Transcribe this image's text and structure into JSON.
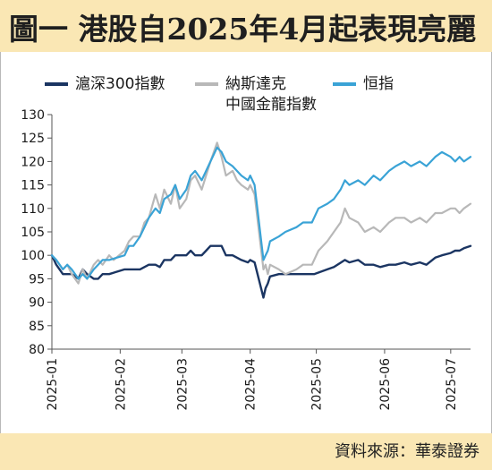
{
  "header": {
    "title": "圖一  港股自2025年4月起表現亮麗"
  },
  "footer": {
    "source": "資料來源：華泰證券"
  },
  "colors": {
    "background": "#ffffff",
    "title_bar": "#fae7b4",
    "hs300": "#1b3562",
    "nasdaq": "#b8b8b8",
    "hsi": "#3aa3d6"
  },
  "chart_data": {
    "type": "line",
    "title": "",
    "xlabel": "",
    "ylabel": "",
    "ylim": [
      80,
      130
    ],
    "yticks": [
      80,
      85,
      90,
      95,
      100,
      105,
      110,
      115,
      120,
      125,
      130
    ],
    "xlim": [
      "2025-01-01",
      "2025-07-10"
    ],
    "xticks": [
      "2025-01",
      "2025-02",
      "2025-03",
      "2025-04",
      "2025-05",
      "2025-06",
      "2025-07"
    ],
    "grid": false,
    "legend_position": "top",
    "legend": [
      {
        "label": "滬深300指數",
        "label_line2": "",
        "color": "#1b3562"
      },
      {
        "label": "納斯達克",
        "label_line2": "中國金龍指數",
        "color": "#b8b8b8"
      },
      {
        "label": "恒指",
        "label_line2": "",
        "color": "#3aa3d6"
      }
    ],
    "series": [
      {
        "name": "滬深300指數",
        "color": "#1b3562",
        "points": [
          [
            "2025-01-01",
            100
          ],
          [
            "2025-01-03",
            98
          ],
          [
            "2025-01-06",
            96
          ],
          [
            "2025-01-10",
            96
          ],
          [
            "2025-01-13",
            95
          ],
          [
            "2025-01-15",
            97
          ],
          [
            "2025-01-17",
            96
          ],
          [
            "2025-01-20",
            95
          ],
          [
            "2025-01-22",
            95
          ],
          [
            "2025-01-24",
            96
          ],
          [
            "2025-01-27",
            96
          ],
          [
            "2025-02-03",
            97
          ],
          [
            "2025-02-06",
            97
          ],
          [
            "2025-02-10",
            97
          ],
          [
            "2025-02-14",
            98
          ],
          [
            "2025-02-17",
            98
          ],
          [
            "2025-02-19",
            97.5
          ],
          [
            "2025-02-21",
            99
          ],
          [
            "2025-02-24",
            99
          ],
          [
            "2025-02-26",
            100
          ],
          [
            "2025-02-28",
            100
          ],
          [
            "2025-03-03",
            100
          ],
          [
            "2025-03-05",
            101
          ],
          [
            "2025-03-07",
            100
          ],
          [
            "2025-03-10",
            100
          ],
          [
            "2025-03-12",
            101
          ],
          [
            "2025-03-14",
            102
          ],
          [
            "2025-03-17",
            102
          ],
          [
            "2025-03-19",
            102
          ],
          [
            "2025-03-21",
            100
          ],
          [
            "2025-03-24",
            100
          ],
          [
            "2025-03-26",
            99.5
          ],
          [
            "2025-03-28",
            99
          ],
          [
            "2025-03-31",
            98.5
          ],
          [
            "2025-04-01",
            99
          ],
          [
            "2025-04-03",
            98.5
          ],
          [
            "2025-04-07",
            91
          ],
          [
            "2025-04-08",
            93
          ],
          [
            "2025-04-09",
            94
          ],
          [
            "2025-04-10",
            95.5
          ],
          [
            "2025-04-14",
            96
          ],
          [
            "2025-04-18",
            96
          ],
          [
            "2025-04-22",
            96
          ],
          [
            "2025-04-25",
            96
          ],
          [
            "2025-04-30",
            96
          ],
          [
            "2025-05-06",
            97
          ],
          [
            "2025-05-09",
            97.5
          ],
          [
            "2025-05-14",
            99
          ],
          [
            "2025-05-16",
            98.5
          ],
          [
            "2025-05-20",
            99
          ],
          [
            "2025-05-23",
            98
          ],
          [
            "2025-05-27",
            98
          ],
          [
            "2025-05-30",
            97.5
          ],
          [
            "2025-06-03",
            98
          ],
          [
            "2025-06-06",
            98
          ],
          [
            "2025-06-10",
            98.5
          ],
          [
            "2025-06-13",
            98
          ],
          [
            "2025-06-17",
            98.5
          ],
          [
            "2025-06-20",
            98
          ],
          [
            "2025-06-24",
            99.5
          ],
          [
            "2025-06-27",
            100
          ],
          [
            "2025-07-01",
            100.5
          ],
          [
            "2025-07-03",
            101
          ],
          [
            "2025-07-05",
            101
          ],
          [
            "2025-07-07",
            101.5
          ],
          [
            "2025-07-10",
            102
          ]
        ]
      },
      {
        "name": "納斯達克中國金龍指數",
        "color": "#b8b8b8",
        "points": [
          [
            "2025-01-01",
            100
          ],
          [
            "2025-01-03",
            99
          ],
          [
            "2025-01-06",
            97
          ],
          [
            "2025-01-08",
            98
          ],
          [
            "2025-01-10",
            96
          ],
          [
            "2025-01-13",
            94
          ],
          [
            "2025-01-15",
            97
          ],
          [
            "2025-01-17",
            95
          ],
          [
            "2025-01-20",
            98
          ],
          [
            "2025-01-22",
            99
          ],
          [
            "2025-01-24",
            98
          ],
          [
            "2025-01-27",
            100
          ],
          [
            "2025-01-29",
            99
          ],
          [
            "2025-02-03",
            101
          ],
          [
            "2025-02-05",
            103
          ],
          [
            "2025-02-07",
            104
          ],
          [
            "2025-02-10",
            104
          ],
          [
            "2025-02-12",
            107
          ],
          [
            "2025-02-14",
            108
          ],
          [
            "2025-02-17",
            113
          ],
          [
            "2025-02-19",
            110
          ],
          [
            "2025-02-21",
            114
          ],
          [
            "2025-02-24",
            111
          ],
          [
            "2025-02-26",
            115
          ],
          [
            "2025-02-28",
            110
          ],
          [
            "2025-03-03",
            112
          ],
          [
            "2025-03-05",
            116
          ],
          [
            "2025-03-07",
            117
          ],
          [
            "2025-03-10",
            114
          ],
          [
            "2025-03-12",
            117
          ],
          [
            "2025-03-14",
            120
          ],
          [
            "2025-03-17",
            124
          ],
          [
            "2025-03-19",
            121
          ],
          [
            "2025-03-21",
            117
          ],
          [
            "2025-03-24",
            118
          ],
          [
            "2025-03-26",
            116
          ],
          [
            "2025-03-28",
            115
          ],
          [
            "2025-03-31",
            114
          ],
          [
            "2025-04-01",
            115
          ],
          [
            "2025-04-03",
            113
          ],
          [
            "2025-04-07",
            97
          ],
          [
            "2025-04-08",
            98
          ],
          [
            "2025-04-09",
            96
          ],
          [
            "2025-04-10",
            98
          ],
          [
            "2025-04-14",
            97
          ],
          [
            "2025-04-17",
            96
          ],
          [
            "2025-04-22",
            97
          ],
          [
            "2025-04-25",
            98
          ],
          [
            "2025-04-29",
            98
          ],
          [
            "2025-05-02",
            101
          ],
          [
            "2025-05-06",
            103
          ],
          [
            "2025-05-09",
            105
          ],
          [
            "2025-05-12",
            107
          ],
          [
            "2025-05-14",
            110
          ],
          [
            "2025-05-16",
            108
          ],
          [
            "2025-05-20",
            107
          ],
          [
            "2025-05-23",
            105
          ],
          [
            "2025-05-27",
            106
          ],
          [
            "2025-05-30",
            105
          ],
          [
            "2025-06-03",
            107
          ],
          [
            "2025-06-06",
            108
          ],
          [
            "2025-06-10",
            108
          ],
          [
            "2025-06-13",
            107
          ],
          [
            "2025-06-17",
            108
          ],
          [
            "2025-06-20",
            107
          ],
          [
            "2025-06-24",
            109
          ],
          [
            "2025-06-27",
            109
          ],
          [
            "2025-07-01",
            110
          ],
          [
            "2025-07-03",
            110
          ],
          [
            "2025-07-05",
            109
          ],
          [
            "2025-07-07",
            110
          ],
          [
            "2025-07-10",
            111
          ]
        ]
      },
      {
        "name": "恒指",
        "color": "#3aa3d6",
        "points": [
          [
            "2025-01-01",
            100
          ],
          [
            "2025-01-03",
            99
          ],
          [
            "2025-01-06",
            97
          ],
          [
            "2025-01-08",
            98
          ],
          [
            "2025-01-10",
            97
          ],
          [
            "2025-01-13",
            95
          ],
          [
            "2025-01-15",
            96
          ],
          [
            "2025-01-17",
            95
          ],
          [
            "2025-01-20",
            97
          ],
          [
            "2025-01-22",
            98
          ],
          [
            "2025-01-24",
            99
          ],
          [
            "2025-01-27",
            99
          ],
          [
            "2025-02-03",
            100
          ],
          [
            "2025-02-05",
            102
          ],
          [
            "2025-02-07",
            102
          ],
          [
            "2025-02-10",
            104
          ],
          [
            "2025-02-12",
            106
          ],
          [
            "2025-02-14",
            108
          ],
          [
            "2025-02-17",
            110
          ],
          [
            "2025-02-19",
            109
          ],
          [
            "2025-02-21",
            112
          ],
          [
            "2025-02-24",
            113
          ],
          [
            "2025-02-26",
            115
          ],
          [
            "2025-02-28",
            112
          ],
          [
            "2025-03-03",
            114
          ],
          [
            "2025-03-05",
            117
          ],
          [
            "2025-03-07",
            118
          ],
          [
            "2025-03-10",
            116
          ],
          [
            "2025-03-12",
            118
          ],
          [
            "2025-03-14",
            120
          ],
          [
            "2025-03-17",
            123
          ],
          [
            "2025-03-19",
            122
          ],
          [
            "2025-03-21",
            120
          ],
          [
            "2025-03-24",
            119
          ],
          [
            "2025-03-26",
            118
          ],
          [
            "2025-03-28",
            117
          ],
          [
            "2025-03-31",
            116
          ],
          [
            "2025-04-01",
            117
          ],
          [
            "2025-04-03",
            115
          ],
          [
            "2025-04-07",
            99
          ],
          [
            "2025-04-08",
            100
          ],
          [
            "2025-04-09",
            101
          ],
          [
            "2025-04-10",
            103
          ],
          [
            "2025-04-14",
            104
          ],
          [
            "2025-04-17",
            105
          ],
          [
            "2025-04-22",
            106
          ],
          [
            "2025-04-25",
            107
          ],
          [
            "2025-04-29",
            107
          ],
          [
            "2025-05-02",
            110
          ],
          [
            "2025-05-06",
            111
          ],
          [
            "2025-05-09",
            112
          ],
          [
            "2025-05-12",
            114
          ],
          [
            "2025-05-14",
            116
          ],
          [
            "2025-05-16",
            115
          ],
          [
            "2025-05-20",
            116
          ],
          [
            "2025-05-23",
            115
          ],
          [
            "2025-05-27",
            117
          ],
          [
            "2025-05-30",
            116
          ],
          [
            "2025-06-03",
            118
          ],
          [
            "2025-06-06",
            119
          ],
          [
            "2025-06-10",
            120
          ],
          [
            "2025-06-13",
            119
          ],
          [
            "2025-06-17",
            120
          ],
          [
            "2025-06-20",
            119
          ],
          [
            "2025-06-24",
            121
          ],
          [
            "2025-06-27",
            122
          ],
          [
            "2025-07-01",
            121
          ],
          [
            "2025-07-03",
            120
          ],
          [
            "2025-07-05",
            121
          ],
          [
            "2025-07-07",
            120
          ],
          [
            "2025-07-10",
            121
          ]
        ]
      }
    ]
  }
}
